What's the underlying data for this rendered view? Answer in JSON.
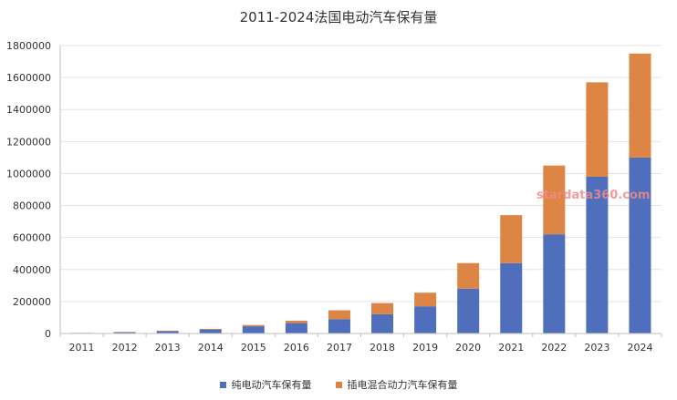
{
  "chart_data": {
    "type": "bar",
    "stacked": true,
    "title": "2011-2024法国电动汽车保有量",
    "xlabel": "",
    "ylabel": "",
    "categories": [
      "2011",
      "2012",
      "2013",
      "2014",
      "2015",
      "2016",
      "2017",
      "2018",
      "2019",
      "2020",
      "2021",
      "2022",
      "2023",
      "2024"
    ],
    "series": [
      {
        "name": "纯电动汽车保有量",
        "color": "#4f6fbd",
        "values": [
          3000,
          8000,
          15000,
          25000,
          45000,
          65000,
          90000,
          120000,
          170000,
          280000,
          440000,
          620000,
          980000,
          1100000
        ]
      },
      {
        "name": "插电混合动力汽车保有量",
        "color": "#dd8544",
        "values": [
          1000,
          2000,
          2500,
          4000,
          8000,
          15000,
          55000,
          70000,
          85000,
          160000,
          300000,
          430000,
          590000,
          650000
        ]
      }
    ],
    "ylim": [
      0,
      1800000
    ],
    "yticks": [
      0,
      200000,
      400000,
      600000,
      800000,
      1000000,
      1200000,
      1400000,
      1600000,
      1800000
    ],
    "grid": true,
    "legend": "bottom"
  },
  "watermark": "stardata360.com"
}
